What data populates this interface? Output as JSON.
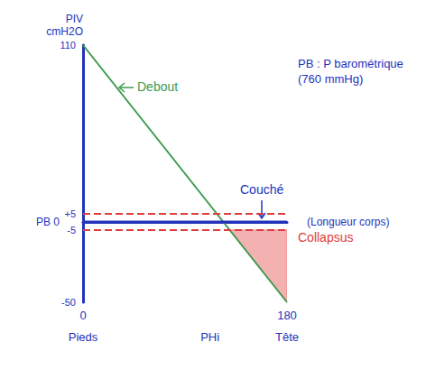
{
  "chart_data": {
    "type": "line",
    "y_label": "PIV cmH2O",
    "x_label": "(Longueur corps)",
    "xlim": [
      0,
      180
    ],
    "xticks": [
      0,
      180
    ],
    "ylim": [
      -50,
      110
    ],
    "yticks": [
      -50,
      -5,
      {
        "value": 0,
        "label": "PB 0"
      },
      {
        "value": 5,
        "label": "+5"
      },
      110
    ],
    "x_landmarks": [
      {
        "x": 0,
        "label": "Pieds"
      },
      {
        "x": 112,
        "label": "PHi"
      },
      {
        "x": 180,
        "label": "Tête"
      }
    ],
    "series": [
      {
        "name": "Debout",
        "color": "#3c9a4e",
        "x": [
          0,
          180
        ],
        "values": [
          110,
          -50
        ]
      },
      {
        "name": "Couché",
        "color": "#2233bb",
        "x": [
          0,
          180
        ],
        "values": [
          0,
          0
        ]
      }
    ],
    "reference_lines": [
      {
        "y": 5,
        "color": "#e03c3c",
        "line_style": "dashed"
      },
      {
        "y": -5,
        "color": "#e03c3c",
        "line_style": "dashed"
      }
    ],
    "region": {
      "label": "Collapsus",
      "color": "#e03c3c",
      "x": [
        129,
        180,
        180
      ],
      "y": [
        -5,
        -5,
        -50
      ]
    },
    "annotations": [
      {
        "text": "PB : P barométrique (760 mmHg)",
        "color": "#2233bb"
      }
    ],
    "grid": false
  }
}
